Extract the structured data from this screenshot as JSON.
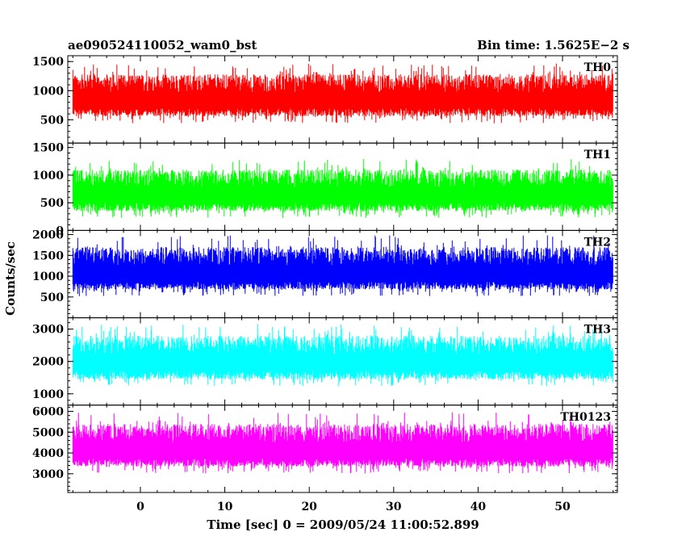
{
  "chart_data": {
    "type": "line",
    "title_left": "ae090524110052_wam0_bst",
    "title_right": "Bin time: 1.5625E−2 s",
    "xlabel": "Time [sec] 0 = 2009/05/24 11:00:52.899",
    "ylabel": "Counts/sec",
    "xlim": [
      -8.6,
      56.5
    ],
    "x_ticks": [
      0,
      10,
      20,
      30,
      40,
      50
    ],
    "x_data_range": [
      -8,
      56
    ],
    "grid": false,
    "panels": [
      {
        "name": "TH0",
        "color": "#ff0000",
        "ylim": [
          100,
          1600
        ],
        "y_ticks": [
          500,
          1000,
          1500
        ],
        "level": 800,
        "noise_low": 240,
        "noise_high": 480
      },
      {
        "name": "TH1",
        "color": "#00ff00",
        "ylim": [
          0,
          1580
        ],
        "y_ticks": [
          0,
          500,
          1000,
          1500
        ],
        "level": 600,
        "noise_low": 250,
        "noise_high": 500
      },
      {
        "name": "TH2",
        "color": "#0000ff",
        "ylim": [
          0,
          2100
        ],
        "y_ticks": [
          500,
          1000,
          1500,
          2000
        ],
        "level": 1000,
        "noise_low": 320,
        "noise_high": 700
      },
      {
        "name": "TH3",
        "color": "#00ffff",
        "ylim": [
          650,
          3350
        ],
        "y_ticks": [
          1000,
          2000,
          3000
        ],
        "level": 1900,
        "noise_low": 450,
        "noise_high": 900
      },
      {
        "name": "TH0123",
        "color": "#ff00ff",
        "ylim": [
          2100,
          6300
        ],
        "y_ticks": [
          3000,
          4000,
          5000,
          6000
        ],
        "level": 4000,
        "noise_low": 650,
        "noise_high": 1400
      }
    ]
  }
}
